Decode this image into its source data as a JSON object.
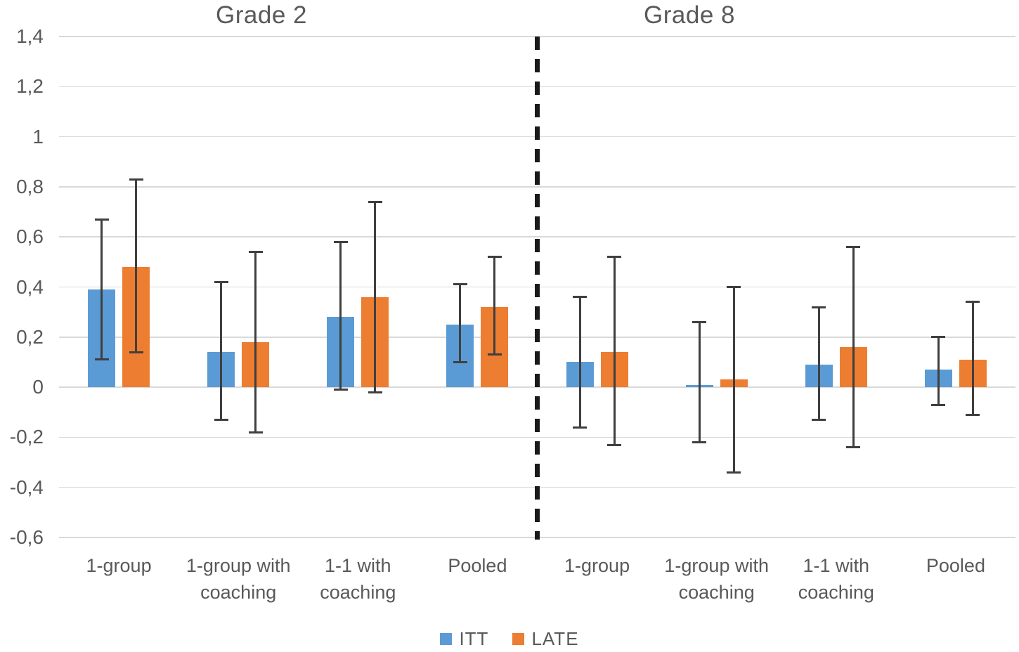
{
  "chart_data": {
    "type": "bar",
    "panels": [
      {
        "title": "Grade 2"
      },
      {
        "title": "Grade 8"
      }
    ],
    "categories": [
      "1-group",
      "1-group with coaching",
      "1-1 with coaching",
      "Pooled",
      "1-group",
      "1-group with coaching",
      "1-1 with coaching",
      "Pooled"
    ],
    "divider_after_category": 4,
    "series": [
      {
        "name": "ITT",
        "color": "#5B9BD5",
        "values": [
          0.39,
          0.14,
          0.28,
          0.25,
          0.1,
          0.01,
          0.09,
          0.07
        ],
        "ci_low": [
          0.11,
          -0.13,
          -0.01,
          0.1,
          -0.16,
          -0.22,
          -0.13,
          -0.07
        ],
        "ci_high": [
          0.67,
          0.42,
          0.58,
          0.41,
          0.36,
          0.26,
          0.32,
          0.2
        ]
      },
      {
        "name": "LATE",
        "color": "#ED7D31",
        "values": [
          0.48,
          0.18,
          0.36,
          0.32,
          0.14,
          0.03,
          0.16,
          0.11
        ],
        "ci_low": [
          0.14,
          -0.18,
          -0.02,
          0.13,
          -0.23,
          -0.34,
          -0.24,
          -0.11
        ],
        "ci_high": [
          0.83,
          0.54,
          0.74,
          0.52,
          0.52,
          0.4,
          0.56,
          0.34
        ]
      }
    ],
    "ylim": [
      -0.6,
      1.4
    ],
    "yticks": [
      {
        "value": 1.4,
        "label": "1,4"
      },
      {
        "value": 1.2,
        "label": "1,2"
      },
      {
        "value": 1,
        "label": "1"
      },
      {
        "value": 0.8,
        "label": "0,8"
      },
      {
        "value": 0.6,
        "label": "0,6"
      },
      {
        "value": 0.4,
        "label": "0,4"
      },
      {
        "value": 0.2,
        "label": "0,2"
      },
      {
        "value": 0,
        "label": "0"
      },
      {
        "value": -0.2,
        "label": "-0,2"
      },
      {
        "value": -0.4,
        "label": "-0,4"
      },
      {
        "value": -0.6,
        "label": "-0,6"
      }
    ],
    "grid": true,
    "legend_position": "bottom",
    "error_bars": true,
    "colors": {
      "grid": "#D9D9D9",
      "text": "#595959",
      "error_bar": "#3F3F3F",
      "divider": "#1A1A1A",
      "background": "#FFFFFF"
    }
  }
}
